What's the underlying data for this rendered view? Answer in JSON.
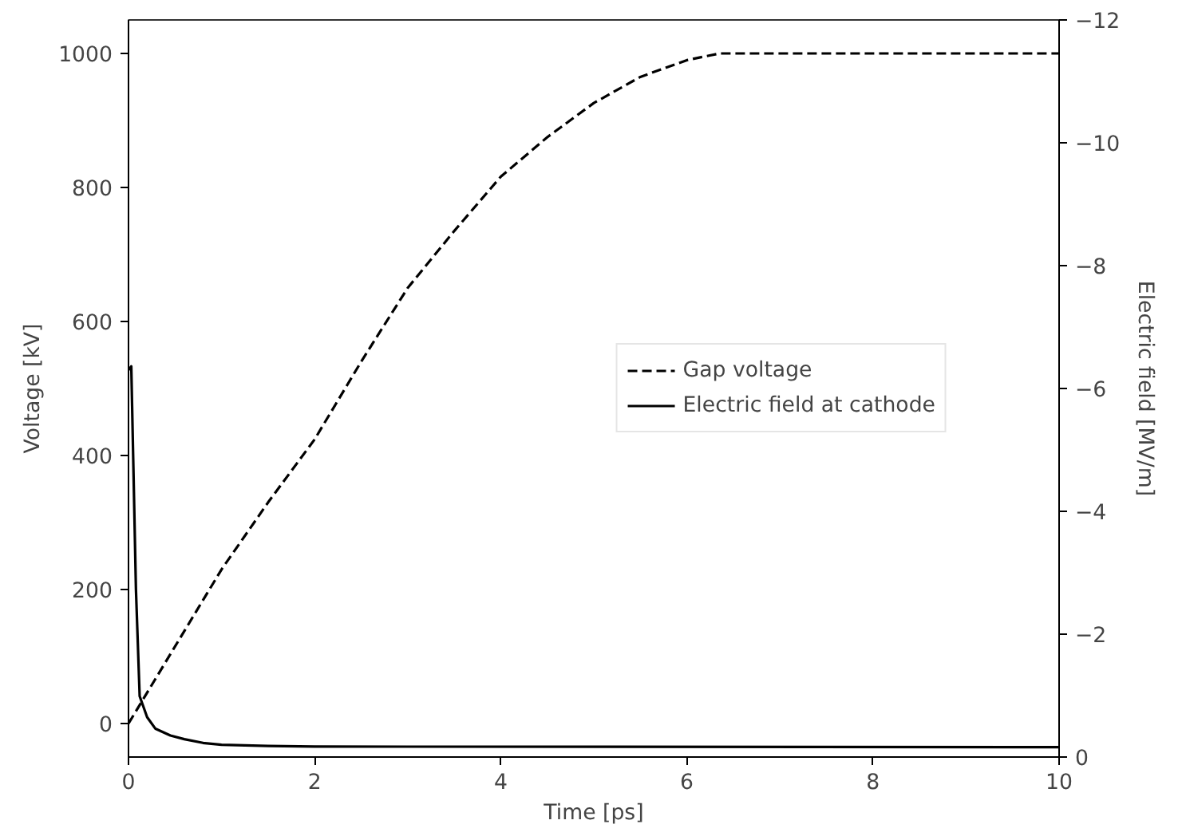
{
  "chart_data": {
    "type": "line",
    "xlabel": "Time [ps]",
    "ylabel": "Voltage [kV]",
    "y2label": "Electric field [MV/m]",
    "xlim": [
      0,
      10
    ],
    "xticks": [
      0,
      2,
      4,
      6,
      8,
      10
    ],
    "ylim": [
      -50,
      1050
    ],
    "yticks": [
      0,
      200,
      400,
      600,
      800,
      1000
    ],
    "y2lim": [
      0,
      -12
    ],
    "y2ticks": [
      {
        "value": -12,
        "label": "−12"
      },
      {
        "value": -10,
        "label": "−10"
      },
      {
        "value": -8,
        "label": "−8"
      },
      {
        "value": -6,
        "label": "−6"
      },
      {
        "value": -4,
        "label": "−4"
      },
      {
        "value": -2,
        "label": "−2"
      },
      0
    ],
    "grid": false,
    "legend": "right",
    "series": [
      {
        "name": "Gap voltage",
        "color": "#000000",
        "line_style": "dashed",
        "x": [
          0,
          0.5,
          1,
          1.5,
          2,
          2.5,
          3,
          3.5,
          4,
          4.5,
          5,
          5.5,
          6,
          6.35,
          10
        ],
        "values": [
          0,
          115,
          230,
          330,
          424,
          540,
          650,
          735,
          816,
          875,
          926,
          965,
          990,
          1000,
          1000
        ]
      },
      {
        "name": "Electric field at cathode",
        "color": "#000000",
        "line_style": "solid",
        "axis": "y2",
        "x": [
          0,
          0.03,
          0.08,
          0.12,
          0.2,
          0.29,
          0.45,
          0.6,
          0.8,
          1.0,
          1.5,
          2,
          10
        ],
        "values": [
          -6.3,
          -6.36,
          -2.73,
          -0.99,
          -0.65,
          -0.46,
          -0.35,
          -0.29,
          -0.23,
          -0.2,
          -0.18,
          -0.17,
          -0.16
        ]
      }
    ]
  }
}
